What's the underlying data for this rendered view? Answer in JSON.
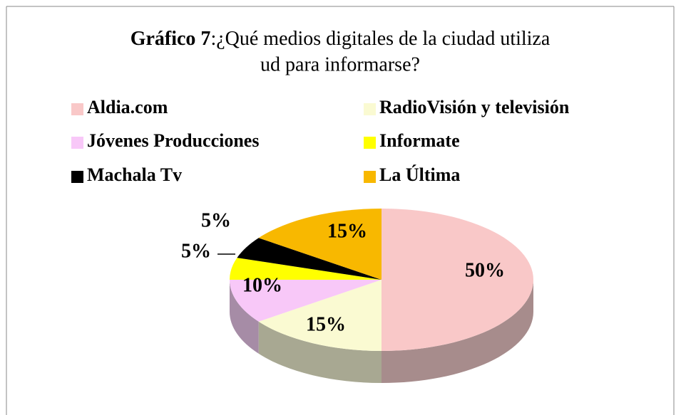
{
  "chart_data": {
    "type": "pie3d",
    "title_prefix": "Gráfico 7",
    "title": ":¿Qué medios digitales de la ciudad utiliza ud para informarse?",
    "categories": [
      "Aldia.com",
      "RadioVisión y televisión",
      "Jóvenes Producciones",
      "Informate",
      "Machala Tv",
      "La Última"
    ],
    "values": [
      50,
      15,
      10,
      5,
      5,
      15
    ],
    "value_labels": [
      "50%",
      "15%",
      "10%",
      "5%",
      "5%",
      "15%"
    ],
    "colors": [
      "#f9c8c8",
      "#fafad2",
      "#f8c8f8",
      "#ffff00",
      "#000000",
      "#f8b800"
    ],
    "legend": "top"
  }
}
